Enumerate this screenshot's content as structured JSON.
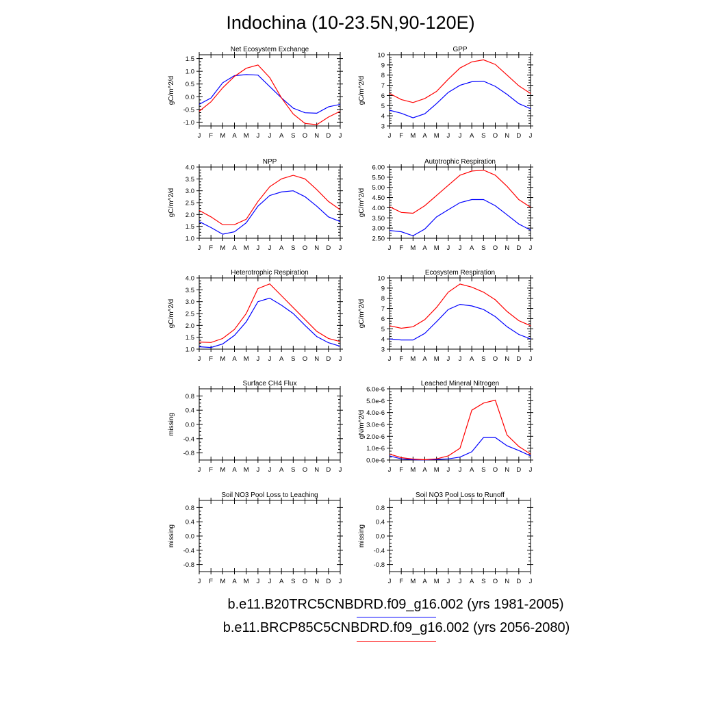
{
  "figure": {
    "title": "Indochina (10-23.5N,90-120E)",
    "legend": [
      {
        "label": "b.e11.B20TRC5CNBDRD.f09_g16.002 (yrs 1981-2005)",
        "color": "#0000ff"
      },
      {
        "label": "b.e11.BRCP85C5CNBDRD.f09_g16.002 (yrs 2056-2080)",
        "color": "#ff0000"
      }
    ]
  },
  "chart_data": [
    {
      "type": "line",
      "title": "Net Ecosystem Exchange",
      "ylabel": "gC/m^2/d",
      "x": [
        "J",
        "F",
        "M",
        "A",
        "M",
        "J",
        "J",
        "A",
        "S",
        "O",
        "N",
        "D",
        "J"
      ],
      "ylim": [
        -1.15,
        1.65
      ],
      "yticks": [
        -1.0,
        -0.5,
        0.0,
        0.5,
        1.0,
        1.5
      ],
      "yticklabels": [
        "-1.0",
        "-0.5",
        "0.0",
        "0.5",
        "1.0",
        "1.5"
      ],
      "series": [
        {
          "color": "#0000ff",
          "values": [
            -0.3,
            -0.05,
            0.55,
            0.83,
            0.87,
            0.85,
            0.4,
            -0.05,
            -0.45,
            -0.63,
            -0.65,
            -0.4,
            -0.3
          ]
        },
        {
          "color": "#ff0000",
          "values": [
            -0.57,
            -0.2,
            0.35,
            0.8,
            1.12,
            1.25,
            0.75,
            -0.05,
            -0.68,
            -1.05,
            -1.1,
            -0.8,
            -0.57
          ]
        }
      ]
    },
    {
      "type": "line",
      "title": "GPP",
      "ylabel": "gC/m^2/d",
      "x": [
        "J",
        "F",
        "M",
        "A",
        "M",
        "J",
        "J",
        "A",
        "S",
        "O",
        "N",
        "D",
        "J"
      ],
      "ylim": [
        3,
        10
      ],
      "yticks": [
        3,
        4,
        5,
        6,
        7,
        8,
        9,
        10
      ],
      "yticklabels": [
        "3",
        "4",
        "5",
        "6",
        "7",
        "8",
        "9",
        "10"
      ],
      "series": [
        {
          "color": "#0000ff",
          "values": [
            4.55,
            4.25,
            3.8,
            4.2,
            5.2,
            6.3,
            7.0,
            7.35,
            7.4,
            6.9,
            6.1,
            5.2,
            4.7
          ]
        },
        {
          "color": "#ff0000",
          "values": [
            6.2,
            5.6,
            5.3,
            5.7,
            6.4,
            7.6,
            8.7,
            9.3,
            9.5,
            9.05,
            8.0,
            6.95,
            6.2
          ]
        }
      ]
    },
    {
      "type": "line",
      "title": "NPP",
      "ylabel": "gC/m^2/d",
      "x": [
        "J",
        "F",
        "M",
        "A",
        "M",
        "J",
        "J",
        "A",
        "S",
        "O",
        "N",
        "D",
        "J"
      ],
      "ylim": [
        1.0,
        4.0
      ],
      "yticks": [
        1.0,
        1.5,
        2.0,
        2.5,
        3.0,
        3.5,
        4.0
      ],
      "yticklabels": [
        "1.0",
        "1.5",
        "2.0",
        "2.5",
        "3.0",
        "3.5",
        "4.0"
      ],
      "series": [
        {
          "color": "#0000ff",
          "values": [
            1.7,
            1.45,
            1.17,
            1.27,
            1.65,
            2.35,
            2.8,
            2.95,
            3.0,
            2.75,
            2.35,
            1.9,
            1.7
          ]
        },
        {
          "color": "#ff0000",
          "values": [
            2.17,
            1.9,
            1.57,
            1.57,
            1.8,
            2.55,
            3.17,
            3.5,
            3.65,
            3.5,
            3.05,
            2.55,
            2.2
          ]
        }
      ]
    },
    {
      "type": "line",
      "title": "Autotrophic Respiration",
      "ylabel": "gC/m^2/d",
      "x": [
        "J",
        "F",
        "M",
        "A",
        "M",
        "J",
        "J",
        "A",
        "S",
        "O",
        "N",
        "D",
        "J"
      ],
      "ylim": [
        2.5,
        6.0
      ],
      "yticks": [
        2.5,
        3.0,
        3.5,
        4.0,
        4.5,
        5.0,
        5.5,
        6.0
      ],
      "yticklabels": [
        "2.50",
        "3.00",
        "3.50",
        "4.00",
        "4.50",
        "5.00",
        "5.50",
        "6.00"
      ],
      "series": [
        {
          "color": "#0000ff",
          "values": [
            2.88,
            2.82,
            2.62,
            2.95,
            3.55,
            3.9,
            4.25,
            4.4,
            4.4,
            4.1,
            3.65,
            3.2,
            2.9
          ]
        },
        {
          "color": "#ff0000",
          "values": [
            4.05,
            3.77,
            3.73,
            4.1,
            4.6,
            5.1,
            5.6,
            5.8,
            5.85,
            5.6,
            5.05,
            4.4,
            4.02
          ]
        }
      ]
    },
    {
      "type": "line",
      "title": "Heterotrophic Respiration",
      "ylabel": "gC/m^2/d",
      "x": [
        "J",
        "F",
        "M",
        "A",
        "M",
        "J",
        "J",
        "A",
        "S",
        "O",
        "N",
        "D",
        "J"
      ],
      "ylim": [
        1.0,
        4.0
      ],
      "yticks": [
        1.0,
        1.5,
        2.0,
        2.5,
        3.0,
        3.5,
        4.0
      ],
      "yticklabels": [
        "1.0",
        "1.5",
        "2.0",
        "2.5",
        "3.0",
        "3.5",
        "4.0"
      ],
      "series": [
        {
          "color": "#0000ff",
          "values": [
            1.1,
            1.07,
            1.22,
            1.58,
            2.15,
            3.0,
            3.15,
            2.85,
            2.5,
            2.0,
            1.53,
            1.27,
            1.12
          ]
        },
        {
          "color": "#ff0000",
          "values": [
            1.3,
            1.28,
            1.45,
            1.83,
            2.5,
            3.55,
            3.75,
            3.25,
            2.75,
            2.25,
            1.75,
            1.45,
            1.32
          ]
        }
      ]
    },
    {
      "type": "line",
      "title": "Ecosystem Respiration",
      "ylabel": "gC/m^2/d",
      "x": [
        "J",
        "F",
        "M",
        "A",
        "M",
        "J",
        "J",
        "A",
        "S",
        "O",
        "N",
        "D",
        "J"
      ],
      "ylim": [
        3,
        10
      ],
      "yticks": [
        3,
        4,
        5,
        6,
        7,
        8,
        9,
        10
      ],
      "yticklabels": [
        "3",
        "4",
        "5",
        "6",
        "7",
        "8",
        "9",
        "10"
      ],
      "series": [
        {
          "color": "#0000ff",
          "values": [
            4.0,
            3.9,
            3.9,
            4.55,
            5.7,
            6.9,
            7.4,
            7.25,
            6.9,
            6.2,
            5.2,
            4.45,
            4.0
          ]
        },
        {
          "color": "#ff0000",
          "values": [
            5.3,
            5.05,
            5.2,
            5.9,
            7.1,
            8.6,
            9.4,
            9.1,
            8.6,
            7.85,
            6.7,
            5.8,
            5.3
          ]
        }
      ]
    },
    {
      "type": "line",
      "title": "Surface CH4 Flux",
      "ylabel": "missing",
      "x": [
        "J",
        "F",
        "M",
        "A",
        "M",
        "J",
        "J",
        "A",
        "S",
        "O",
        "N",
        "D",
        "J"
      ],
      "ylim": [
        -1.0,
        1.0
      ],
      "yticks": [
        -0.8,
        -0.4,
        0.0,
        0.4,
        0.8
      ],
      "yticklabels": [
        "-0.8",
        "-0.4",
        "0.0",
        "0.4",
        "0.8"
      ],
      "series": []
    },
    {
      "type": "line",
      "title": "Leached Mineral Nitrogen",
      "ylabel": "gN/m^2/d",
      "x": [
        "J",
        "F",
        "M",
        "A",
        "M",
        "J",
        "J",
        "A",
        "S",
        "O",
        "N",
        "D",
        "J"
      ],
      "ylim": [
        0,
        6e-06
      ],
      "yticks": [
        0,
        1e-06,
        2e-06,
        3e-06,
        4e-06,
        5e-06,
        6e-06
      ],
      "yticklabels": [
        "0.0e-6",
        "1.0e-6",
        "2.0e-6",
        "3.0e-6",
        "4.0e-6",
        "5.0e-6",
        "6.0e-6"
      ],
      "series": [
        {
          "color": "#0000ff",
          "values": [
            3.5e-07,
            1e-07,
            3e-08,
            1e-08,
            5e-08,
            1e-07,
            2.5e-07,
            7e-07,
            1.9e-06,
            1.9e-06,
            1.2e-06,
            8e-07,
            3.5e-07
          ]
        },
        {
          "color": "#ff0000",
          "values": [
            5e-07,
            2e-07,
            8e-08,
            3e-08,
            1e-07,
            3.5e-07,
            1e-06,
            4.2e-06,
            4.8e-06,
            5.05e-06,
            2.1e-06,
            1.15e-06,
            5e-07
          ]
        }
      ]
    },
    {
      "type": "line",
      "title": "Soil NO3 Pool Loss to Leaching",
      "ylabel": "missing",
      "x": [
        "J",
        "F",
        "M",
        "A",
        "M",
        "J",
        "J",
        "A",
        "S",
        "O",
        "N",
        "D",
        "J"
      ],
      "ylim": [
        -1.0,
        1.0
      ],
      "yticks": [
        -0.8,
        -0.4,
        0.0,
        0.4,
        0.8
      ],
      "yticklabels": [
        "-0.8",
        "-0.4",
        "0.0",
        "0.4",
        "0.8"
      ],
      "series": []
    },
    {
      "type": "line",
      "title": "Soil NO3 Pool Loss to Runoff",
      "ylabel": "missing",
      "x": [
        "J",
        "F",
        "M",
        "A",
        "M",
        "J",
        "J",
        "A",
        "S",
        "O",
        "N",
        "D",
        "J"
      ],
      "ylim": [
        -1.0,
        1.0
      ],
      "yticks": [
        -0.8,
        -0.4,
        0.0,
        0.4,
        0.8
      ],
      "yticklabels": [
        "-0.8",
        "-0.4",
        "0.0",
        "0.4",
        "0.8"
      ],
      "series": []
    }
  ]
}
